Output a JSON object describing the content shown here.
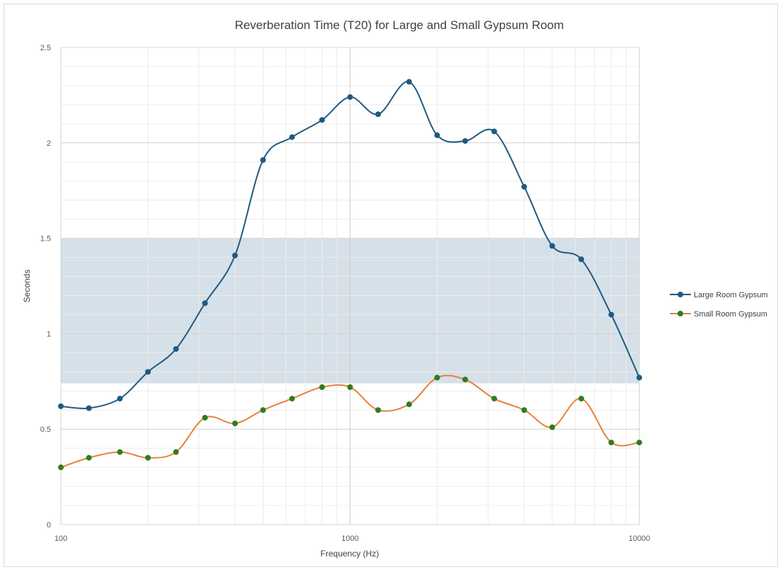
{
  "chart_data": {
    "type": "line",
    "title": "Reverberation Time (T20) for Large and Small Gypsum Room",
    "xlabel": "Frequency  (Hz)",
    "ylabel": "Seconds",
    "x_scale": "log",
    "xlim": [
      100,
      10000
    ],
    "ylim": [
      0,
      2.5
    ],
    "y_ticks": [
      0,
      0.5,
      1,
      1.5,
      2,
      2.5
    ],
    "y_tick_labels": [
      "0",
      "0.5",
      "1",
      "1.5",
      "2",
      "2.5"
    ],
    "x_tick_labels": [
      "100",
      "1000",
      "10000"
    ],
    "x_tick_values": [
      100,
      1000,
      10000
    ],
    "grid": true,
    "legend_position": "right",
    "shaded_band": {
      "y_from": 0.74,
      "y_to": 1.5,
      "color": "#d6e0e8"
    },
    "x": [
      100,
      125,
      160,
      200,
      250,
      315,
      400,
      500,
      630,
      800,
      1000,
      1250,
      1600,
      2000,
      2500,
      3150,
      4000,
      5000,
      6300,
      8000,
      10000
    ],
    "series": [
      {
        "name": "Large Room Gypsum",
        "color": "#1f5a82",
        "values": [
          0.62,
          0.61,
          0.66,
          0.8,
          0.92,
          1.16,
          1.41,
          1.91,
          2.03,
          2.12,
          2.24,
          2.15,
          2.32,
          2.04,
          2.01,
          2.06,
          1.77,
          1.46,
          1.39,
          1.1,
          0.77
        ]
      },
      {
        "name": "Small Room Gypsum",
        "color": "#e8803a",
        "marker_color": "#2e7d1e",
        "values": [
          0.3,
          0.35,
          0.38,
          0.35,
          0.38,
          0.56,
          0.53,
          0.6,
          0.66,
          0.72,
          0.72,
          0.6,
          0.63,
          0.77,
          0.76,
          0.66,
          0.6,
          0.51,
          0.66,
          0.43,
          0.43
        ]
      }
    ]
  }
}
